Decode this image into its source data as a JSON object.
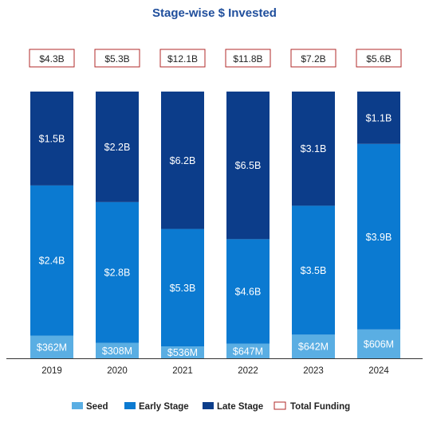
{
  "chart_data": {
    "type": "bar",
    "stacked": true,
    "title": "Stage-wise $ Invested",
    "categories": [
      "2019",
      "2020",
      "2021",
      "2022",
      "2023",
      "2024"
    ],
    "series": [
      {
        "name": "Seed",
        "color": "#5aaee3",
        "values": [
          0.362,
          0.308,
          0.536,
          0.647,
          0.642,
          0.606
        ],
        "labels": [
          "$362M",
          "$308M",
          "$536M",
          "$647M",
          "$642M",
          "$606M"
        ]
      },
      {
        "name": "Early Stage",
        "color": "#0b7ad1",
        "values": [
          2.4,
          2.8,
          5.3,
          4.6,
          3.5,
          3.9
        ],
        "labels": [
          "$2.4B",
          "$2.8B",
          "$5.3B",
          "$4.6B",
          "$3.5B",
          "$3.9B"
        ]
      },
      {
        "name": "Late Stage",
        "color": "#0c3d8a",
        "values": [
          1.5,
          2.2,
          6.2,
          6.5,
          3.1,
          1.1
        ],
        "labels": [
          "$1.5B",
          "$2.2B",
          "$6.2B",
          "$6.5B",
          "$3.1B",
          "$1.1B"
        ]
      }
    ],
    "totals": {
      "name": "Total Funding",
      "color": "#b02a2a",
      "labels": [
        "$4.3B",
        "$5.3B",
        "$12.1B",
        "$11.8B",
        "$7.2B",
        "$5.6B"
      ]
    },
    "normalized_100_percent": true,
    "legend_position": "bottom"
  }
}
